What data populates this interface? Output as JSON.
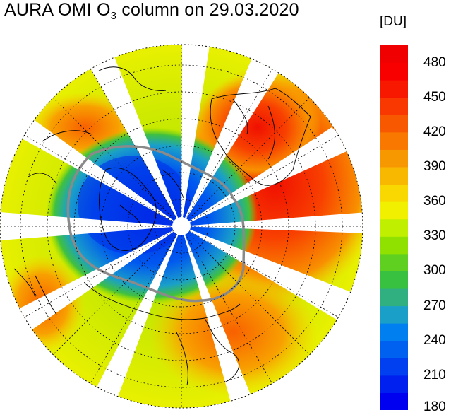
{
  "title": {
    "prefix": "AURA OMI O",
    "subscript": "3",
    "suffix": " column on  29.03.2020"
  },
  "colorbar": {
    "unit": "[DU]",
    "min": 180,
    "max": 495,
    "step": 15,
    "labels": [
      "480",
      "450",
      "420",
      "390",
      "360",
      "330",
      "300",
      "270",
      "240",
      "210",
      "180"
    ],
    "colors": [
      "#0000f0",
      "#0020f0",
      "#0040f0",
      "#0060f0",
      "#0080f0",
      "#1aa0c8",
      "#30b080",
      "#38c040",
      "#60d020",
      "#90e000",
      "#c0f000",
      "#f0f000",
      "#f8d800",
      "#f8b800",
      "#f89800",
      "#f87800",
      "#f85800",
      "#f83800",
      "#f81800",
      "#f80000",
      "#f00000"
    ]
  },
  "map": {
    "projection": "polar-stereographic-north",
    "date": "29.03.2020"
  }
}
